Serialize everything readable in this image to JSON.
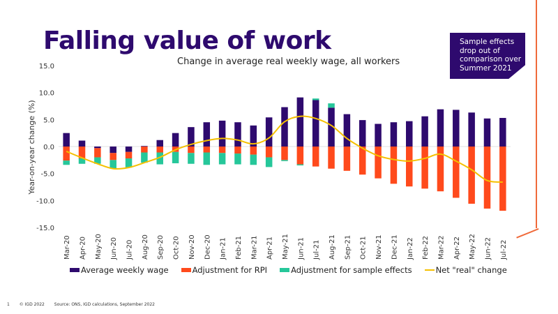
{
  "slide": {
    "title": "Falling value of work",
    "callout_lines": [
      "Sample effects",
      "drop out of",
      "comparison over",
      "Summer 2021"
    ],
    "footer": {
      "page_number": "1",
      "copyright": "© IGD 2022",
      "source": "Source: ONS, IGD calculations, September 2022"
    }
  },
  "chart_data": {
    "type": "bar",
    "stacked": true,
    "title": "Change in average real weekly wage, all workers",
    "xlabel": "",
    "ylabel": "Year-on-year change (%)",
    "ylim": [
      -15,
      15
    ],
    "yticks": [
      "15.0",
      "10.0",
      "5.0",
      "0.0",
      "-5.0",
      "-10.0",
      "-15.0"
    ],
    "ytick_values": [
      15,
      10,
      5,
      0,
      -5,
      -10,
      -15
    ],
    "grid": false,
    "legend_position": "bottom",
    "categories": [
      "Mar-20",
      "Apr-20",
      "May-20",
      "Jun-20",
      "Jul-20",
      "Aug-20",
      "Sep-20",
      "Oct-20",
      "Nov-20",
      "Dec-20",
      "Jan-21",
      "Feb-21",
      "Mar-21",
      "Apr-21",
      "May-21",
      "Jun-21",
      "Jul-21",
      "Aug-21",
      "Sep-21",
      "Oct-21",
      "Nov-21",
      "Dec-21",
      "Jan-22",
      "Feb-22",
      "Mar-22",
      "Apr-22",
      "May-22",
      "Jun-22",
      "Jul-22"
    ],
    "series": [
      {
        "name": "Average weekly wage",
        "kind": "bar",
        "color": "#2e0a6e",
        "values": [
          2.5,
          1.1,
          -0.3,
          -1.2,
          -1.0,
          0.1,
          1.2,
          2.5,
          3.6,
          4.5,
          4.8,
          4.5,
          3.9,
          5.4,
          7.3,
          9.1,
          8.6,
          7.2,
          6.0,
          4.9,
          4.2,
          4.5,
          4.7,
          5.6,
          6.9,
          6.8,
          6.3,
          5.2,
          5.3
        ]
      },
      {
        "name": "Adjustment for RPI",
        "kind": "bar",
        "color": "#ff4a1c",
        "values": [
          -2.6,
          -2.2,
          -1.7,
          -1.3,
          -1.2,
          -1.1,
          -1.1,
          -1.0,
          -1.2,
          -1.1,
          -1.2,
          -1.3,
          -1.5,
          -2.0,
          -2.5,
          -3.3,
          -3.7,
          -4.1,
          -4.5,
          -5.2,
          -5.9,
          -6.9,
          -7.4,
          -7.8,
          -8.3,
          -9.5,
          -10.6,
          -11.5,
          -11.9
        ]
      },
      {
        "name": "Adjustment for sample effects",
        "kind": "bar",
        "color": "#26c79a",
        "values": [
          -0.8,
          -1.0,
          -1.2,
          -1.6,
          -1.7,
          -1.9,
          -2.2,
          -2.1,
          -2.0,
          -2.3,
          -2.1,
          -2.0,
          -1.9,
          -1.8,
          -0.2,
          -0.2,
          0.3,
          0.8,
          0,
          0,
          0,
          0,
          0,
          0,
          0,
          0,
          0,
          0,
          0
        ]
      },
      {
        "name": "Net \"real\" change",
        "kind": "line",
        "color": "#f5c000",
        "values": [
          -0.9,
          -2.1,
          -3.2,
          -4.1,
          -3.9,
          -3.0,
          -2.0,
          -0.6,
          0.4,
          1.1,
          1.5,
          1.2,
          0.5,
          1.6,
          4.6,
          5.6,
          5.2,
          3.9,
          1.5,
          -0.3,
          -1.7,
          -2.4,
          -2.7,
          -2.2,
          -1.4,
          -2.7,
          -4.3,
          -6.3,
          -6.6
        ]
      }
    ]
  }
}
